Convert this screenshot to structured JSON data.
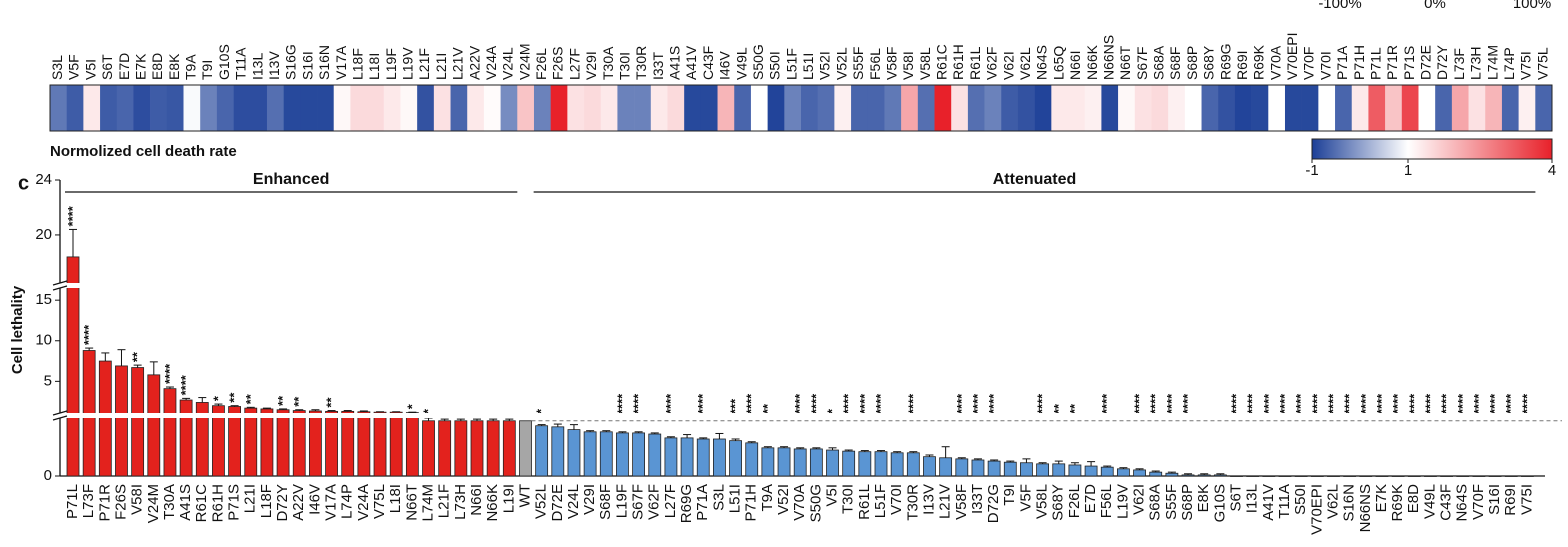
{
  "heatmap": {
    "title": "Normolized cell death rate",
    "top_labels": [
      "-100%",
      "0%",
      "100%"
    ],
    "labels": [
      "S3L",
      "V5F",
      "V5I",
      "S6T",
      "E7D",
      "E7K",
      "E8D",
      "E8K",
      "T9A",
      "T9I",
      "G10S",
      "T11A",
      "I13L",
      "I13V",
      "S16G",
      "S16I",
      "S16N",
      "V17A",
      "L18F",
      "L18I",
      "L19F",
      "L19V",
      "L21F",
      "L21I",
      "L21V",
      "A22V",
      "V24A",
      "V24L",
      "V24M",
      "F26L",
      "F26S",
      "L27F",
      "V29I",
      "T30A",
      "T30I",
      "T30R",
      "I33T",
      "A41S",
      "A41V",
      "C43F",
      "I46V",
      "V49L",
      "S50G",
      "S50I",
      "L51F",
      "L51I",
      "V52I",
      "V52L",
      "S55F",
      "F56L",
      "V58F",
      "V58I",
      "V58L",
      "R61C",
      "R61H",
      "R61L",
      "V62F",
      "V62I",
      "V62L",
      "N64S",
      "L65Q",
      "N66I",
      "N66K",
      "N66NS",
      "N66T",
      "S67F",
      "S68A",
      "S68F",
      "S68P",
      "S68Y",
      "R69G",
      "R69I",
      "R69K",
      "V70A",
      "V70EPI",
      "V70F",
      "V70I",
      "P71A",
      "P71H",
      "P71L",
      "P71R",
      "P71S",
      "D72E",
      "D72Y",
      "L73F",
      "L73H",
      "L74M",
      "L74P",
      "V75I",
      "V75L"
    ],
    "values": [
      -0.4,
      -0.7,
      1.3,
      -0.7,
      -0.6,
      -0.85,
      -0.7,
      -0.75,
      0.95,
      -0.3,
      -0.6,
      -0.85,
      -0.85,
      -0.5,
      -0.9,
      -0.9,
      -0.9,
      1.1,
      1.5,
      1.5,
      1.3,
      1.1,
      -0.8,
      1.4,
      -0.6,
      1.3,
      1.05,
      -0.2,
      1.8,
      -0.3,
      4,
      1.4,
      1.5,
      1.3,
      -0.3,
      -0.3,
      1.3,
      1.5,
      -0.9,
      -0.9,
      2.0,
      -0.6,
      1.0,
      -0.95,
      -0.3,
      -0.6,
      -0.5,
      1.2,
      -0.6,
      -0.6,
      -0.4,
      2.2,
      -0.5,
      4,
      1.4,
      -0.5,
      -0.3,
      -0.7,
      -0.8,
      -0.95,
      1.3,
      1.3,
      1.2,
      -0.9,
      1.1,
      1.4,
      1.5,
      1.2,
      1.0,
      -0.6,
      -0.8,
      -0.95,
      -0.9,
      1.0,
      -0.9,
      -0.9,
      1.0,
      -0.6,
      1.3,
      3.2,
      1.8,
      3.5,
      1.0,
      -0.6,
      2.2,
      1.4,
      2.0,
      -0.6,
      1.2,
      -0.6
    ],
    "colorscale": [
      {
        "value": -1,
        "color": "#1c3f97"
      },
      {
        "value": 1,
        "color": "#ffffff"
      },
      {
        "value": 4,
        "color": "#e8212a"
      }
    ],
    "colorbar_ticks": [
      -1,
      1,
      4
    ]
  },
  "chart_data": {
    "type": "bar",
    "panel_label": "c",
    "ylabel": "Cell lethality",
    "y_segments": [
      {
        "ylim": [
          0,
          1.05
        ],
        "yticks": [
          0
        ]
      },
      {
        "ylim": [
          1.1,
          16.5
        ],
        "yticks": [
          5,
          10,
          15
        ]
      },
      {
        "ylim": [
          16.5,
          24
        ],
        "yticks": [
          20,
          24
        ]
      }
    ],
    "series": [
      {
        "name": "Enhanced",
        "color": "#e3221d",
        "categories": [
          "P71L",
          "L73F",
          "P71R",
          "F26S",
          "V58I",
          "V24M",
          "T30A",
          "A41S",
          "R61C",
          "R61H",
          "P71S",
          "L21I",
          "L18F",
          "D72Y",
          "A22V",
          "I46V",
          "V17A",
          "L74P",
          "V24A",
          "V75L",
          "L18I",
          "N66T",
          "L74M",
          "L21F",
          "L73H",
          "N66I",
          "N66K",
          "L19I"
        ],
        "values": [
          18.4,
          8.8,
          7.5,
          6.9,
          6.7,
          5.8,
          4.1,
          2.7,
          2.4,
          2.0,
          1.9,
          1.7,
          1.6,
          1.5,
          1.4,
          1.35,
          1.3,
          1.3,
          1.25,
          1.2,
          1.2,
          1.15,
          1.0,
          1.0,
          1.0,
          1.0,
          1.0,
          1.0
        ],
        "errors": [
          2.0,
          0.3,
          1.0,
          2.0,
          0.3,
          1.6,
          0.2,
          0.2,
          0.6,
          0.2,
          0.1,
          0.1,
          0.1,
          0.1,
          0.1,
          0.15,
          0.1,
          0.1,
          0.1,
          0.05,
          0.05,
          0.05,
          0.05,
          0.03,
          0.03,
          0.03,
          0.03,
          0.03
        ],
        "significance": [
          "****",
          "****",
          null,
          null,
          "**",
          null,
          "****",
          "****",
          null,
          "*",
          "**",
          "**",
          null,
          "**",
          "**",
          null,
          "**",
          null,
          null,
          null,
          null,
          "*",
          "*",
          null,
          null,
          null,
          null,
          null
        ]
      },
      {
        "color": "#a6a6a6",
        "categories": [
          "WT"
        ],
        "values": [
          1.0
        ],
        "errors": [
          0.0
        ],
        "significance": [
          null
        ]
      },
      {
        "name": "Attenuated",
        "color": "#5a95d3",
        "categories": [
          "V52L",
          "D72E",
          "V24L",
          "V29I",
          "S68F",
          "L19F",
          "S67F",
          "V62F",
          "L27F",
          "R69G",
          "P71A",
          "S3L",
          "L51I",
          "P71H",
          "T9A",
          "V52I",
          "V70A",
          "S50G",
          "V5I",
          "T30I",
          "R61L",
          "L51F",
          "V70I",
          "T30R",
          "I13V",
          "L21V",
          "V58F",
          "I33T",
          "D72G",
          "T9I",
          "V5F",
          "V58L",
          "S68Y",
          "F26L",
          "E7D",
          "F56L",
          "L19V",
          "V62I",
          "S68A",
          "S55F",
          "S68P",
          "E8K",
          "G10S",
          "S6T",
          "I13L",
          "A41V",
          "T11A",
          "S50I",
          "V70EPI",
          "V62L",
          "S16N",
          "N66NS",
          "E7K",
          "R69K",
          "E8D",
          "V49L",
          "C43F",
          "N64S",
          "V70F",
          "S16I",
          "R69I",
          "V75I"
        ],
        "values": [
          0.91,
          0.89,
          0.84,
          0.8,
          0.8,
          0.78,
          0.78,
          0.76,
          0.69,
          0.69,
          0.67,
          0.67,
          0.64,
          0.6,
          0.51,
          0.51,
          0.49,
          0.49,
          0.47,
          0.45,
          0.44,
          0.44,
          0.42,
          0.42,
          0.35,
          0.33,
          0.31,
          0.29,
          0.27,
          0.25,
          0.24,
          0.22,
          0.22,
          0.2,
          0.18,
          0.16,
          0.13,
          0.11,
          0.07,
          0.05,
          0.02,
          0.02,
          0.02,
          0,
          0,
          0,
          0,
          0,
          0,
          0,
          0,
          0,
          0,
          0,
          0,
          0,
          0,
          0,
          0,
          0,
          0,
          0
        ],
        "errors": [
          0.02,
          0.05,
          0.09,
          0.02,
          0.02,
          0.02,
          0.02,
          0.02,
          0.02,
          0.06,
          0.02,
          0.1,
          0.03,
          0.02,
          0.02,
          0.02,
          0.02,
          0.02,
          0.04,
          0.02,
          0.02,
          0.02,
          0.02,
          0.02,
          0.03,
          0.2,
          0.02,
          0.02,
          0.02,
          0.02,
          0.07,
          0.02,
          0.05,
          0.04,
          0.08,
          0.02,
          0.02,
          0.02,
          0.02,
          0.02,
          0.02,
          0.02,
          0.02,
          0,
          0,
          0,
          0,
          0,
          0,
          0,
          0,
          0,
          0,
          0,
          0,
          0,
          0,
          0,
          0,
          0,
          0,
          0
        ],
        "significance": [
          "*",
          null,
          null,
          null,
          null,
          "****",
          "****",
          null,
          "****",
          null,
          "****",
          null,
          "***",
          "****",
          "**",
          null,
          "****",
          "****",
          "*",
          "****",
          "****",
          "****",
          null,
          "****",
          null,
          null,
          "****",
          "****",
          "****",
          null,
          null,
          "****",
          "**",
          "**",
          null,
          "****",
          null,
          "****",
          "****",
          "****",
          "****",
          null,
          null,
          "****",
          "****",
          "****",
          "****",
          "****",
          "****",
          "****",
          "****",
          "****",
          "****",
          "****",
          "****",
          "****",
          "****",
          "****",
          "****",
          "****",
          "****",
          "****"
        ]
      }
    ]
  }
}
